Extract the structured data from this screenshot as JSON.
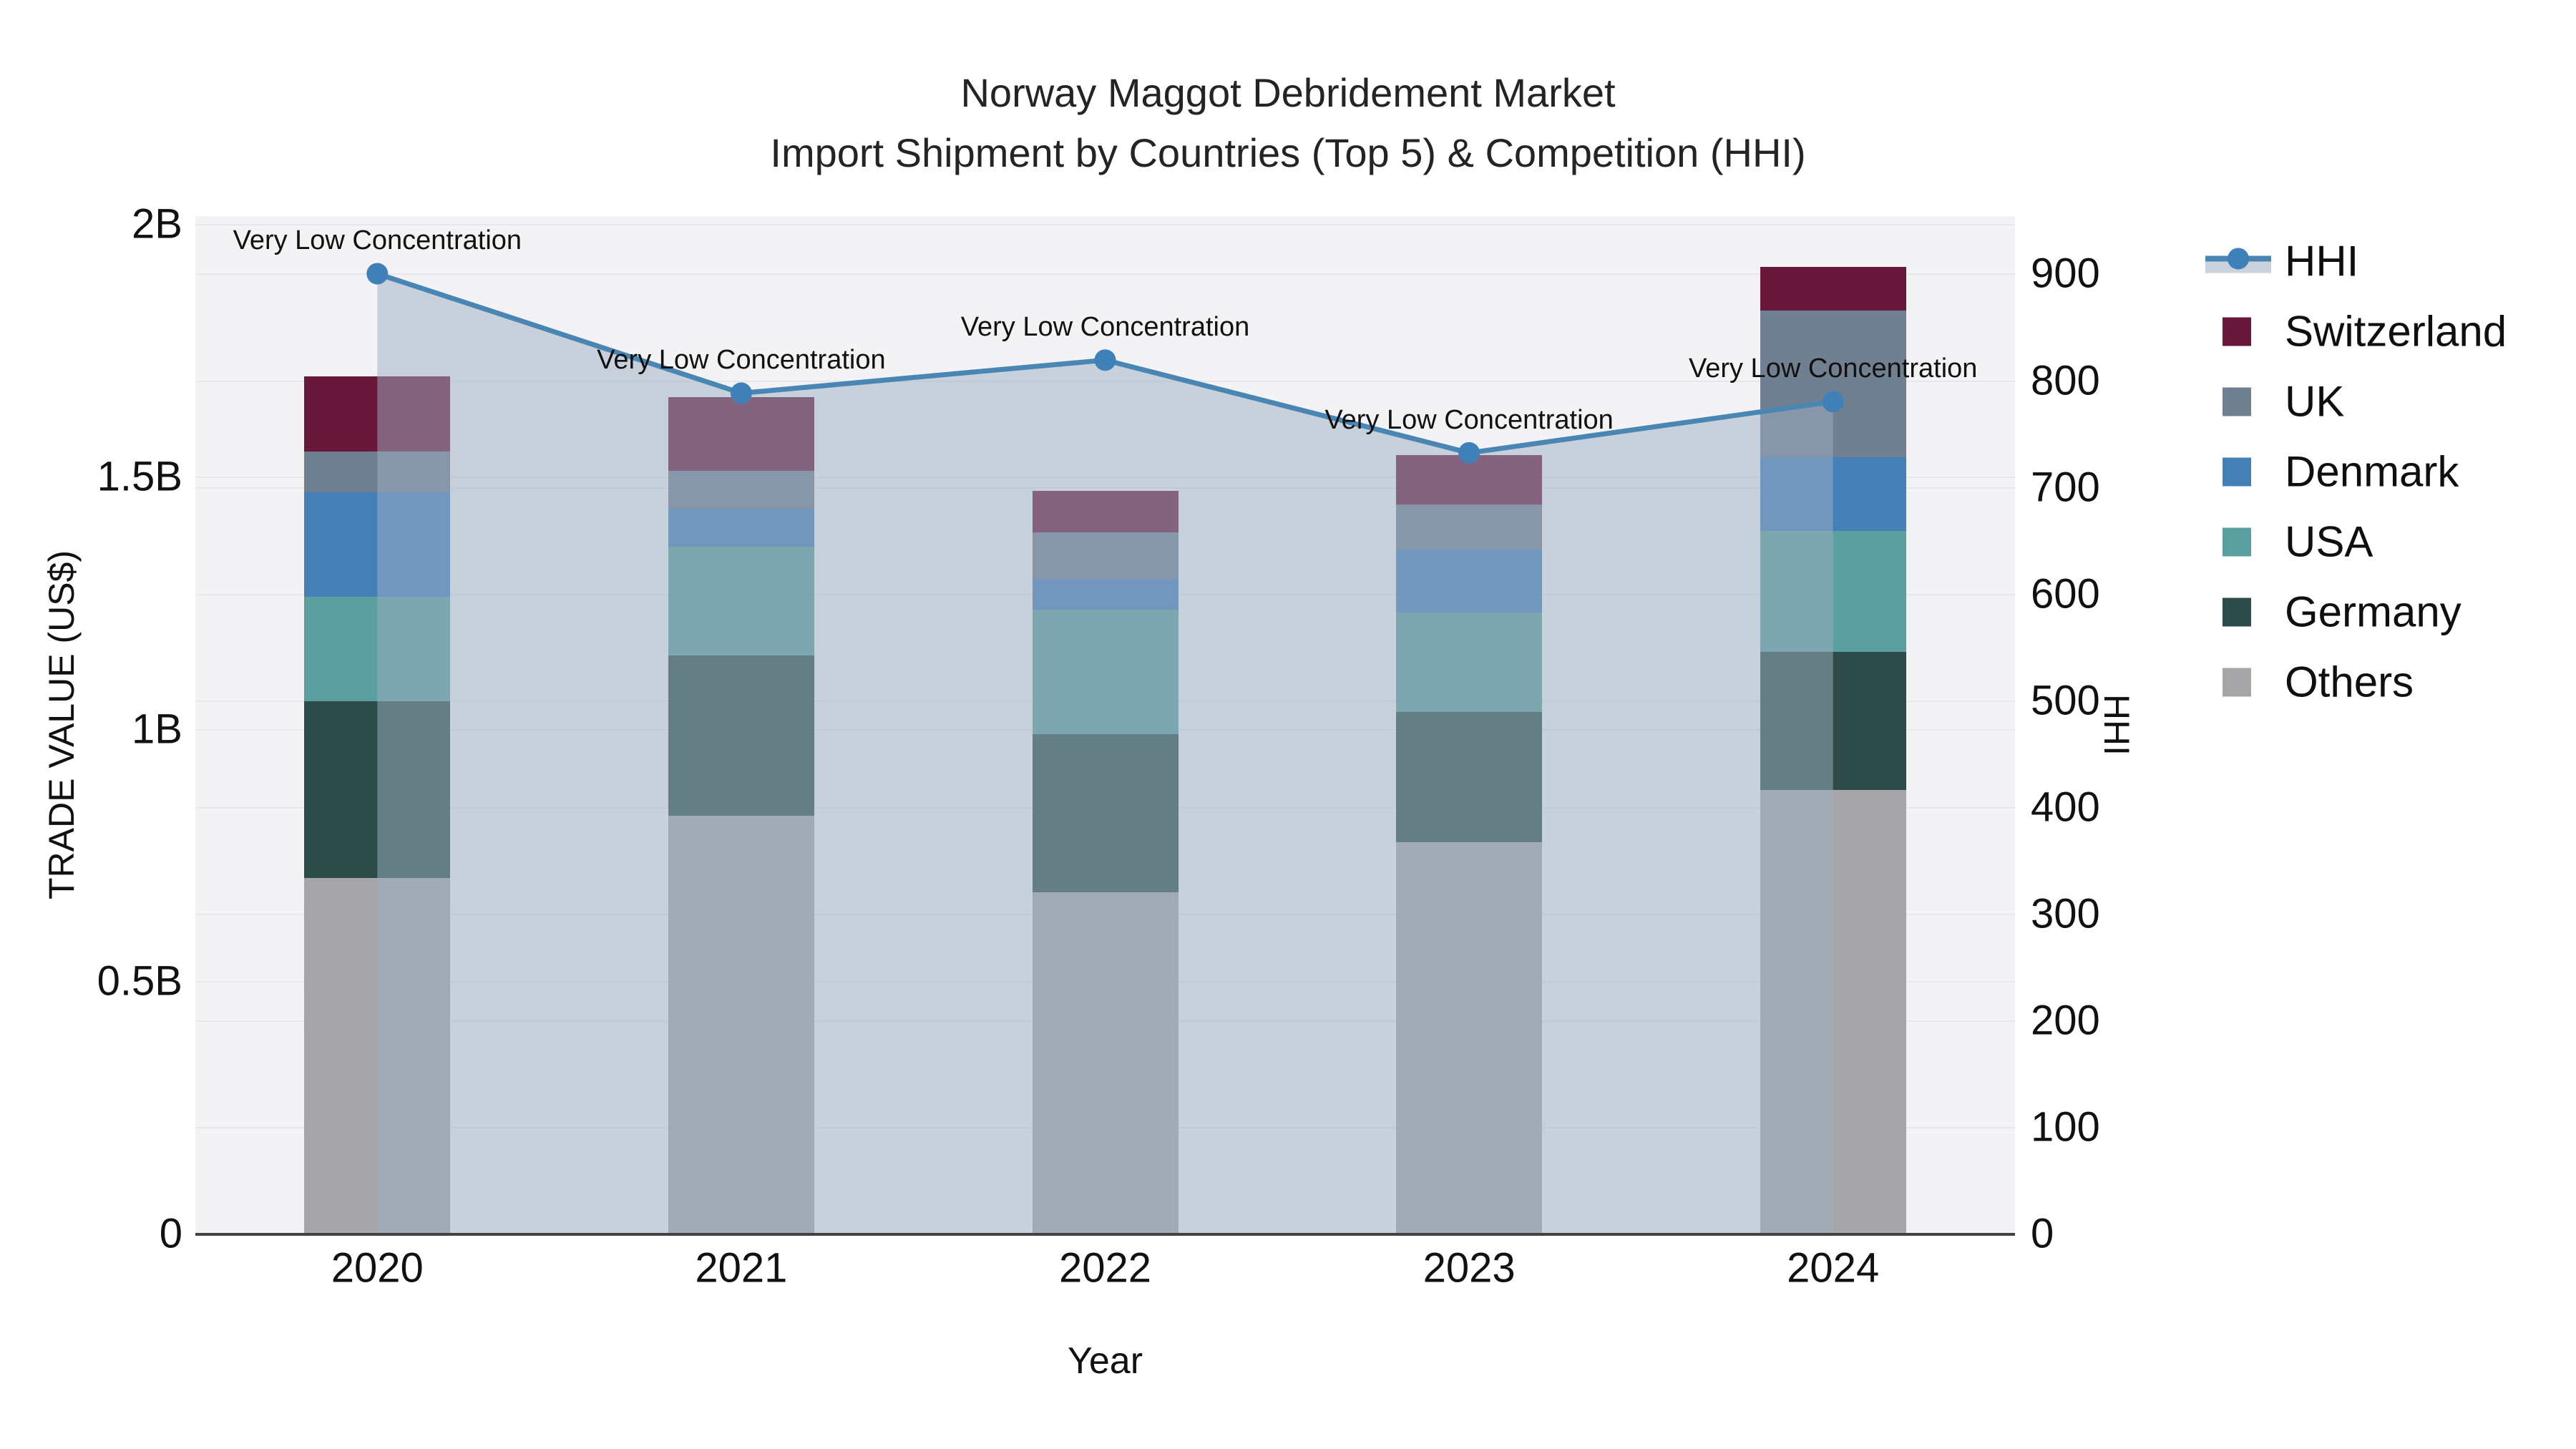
{
  "title": {
    "line1": "Norway Maggot Debridement Market",
    "line2": "Import Shipment by Countries (Top 5) & Competition (HHI)"
  },
  "axes": {
    "x": {
      "title": "Year",
      "categories": [
        "2020",
        "2021",
        "2022",
        "2023",
        "2024"
      ]
    },
    "left": {
      "title": "TRADE VALUE (US$)",
      "ticks": [
        {
          "label": "0",
          "value": 0
        },
        {
          "label": "0.5B",
          "value": 0.5
        },
        {
          "label": "1B",
          "value": 1
        },
        {
          "label": "1.5B",
          "value": 1.5
        },
        {
          "label": "2B",
          "value": 2
        }
      ],
      "max": 2.016
    },
    "right": {
      "title": "HHI",
      "ticks": [
        {
          "label": "0",
          "value": 0
        },
        {
          "label": "100",
          "value": 100
        },
        {
          "label": "200",
          "value": 200
        },
        {
          "label": "300",
          "value": 300
        },
        {
          "label": "400",
          "value": 400
        },
        {
          "label": "500",
          "value": 500
        },
        {
          "label": "600",
          "value": 600
        },
        {
          "label": "700",
          "value": 700
        },
        {
          "label": "800",
          "value": 800
        },
        {
          "label": "900",
          "value": 900
        }
      ],
      "max": 954
    }
  },
  "legend": {
    "items": [
      {
        "label": "HHI",
        "kind": "line",
        "color": "#4a86b4"
      },
      {
        "label": "Switzerland",
        "kind": "bar",
        "color": "#68183B"
      },
      {
        "label": "UK",
        "kind": "bar",
        "color": "#708090"
      },
      {
        "label": "Denmark",
        "kind": "bar",
        "color": "#4480B6"
      },
      {
        "label": "USA",
        "kind": "bar",
        "color": "#5C9FA1"
      },
      {
        "label": "Germany",
        "kind": "bar",
        "color": "#2D4C49"
      },
      {
        "label": "Others",
        "kind": "bar",
        "color": "#A6A6A8"
      }
    ]
  },
  "colors": {
    "plot_bg": "#f3f3f5",
    "grid": "#e7e7ea",
    "axis_line": "#424242",
    "hhi_line": "#4a86b4",
    "hhi_marker": "#4080b8",
    "hhi_fill": "rgba(158,174,193,0.5)",
    "legend_band": "#c9d2dd"
  },
  "chart_data": {
    "type": "bar",
    "subtype": "stacked-bars-with-line",
    "title": "Norway Maggot Debridement Market — Import Shipment by Countries (Top 5) & Competition (HHI)",
    "xlabel": "Year",
    "ylabel_left": "TRADE VALUE (US$)",
    "ylabel_right": "HHI",
    "ylim_left_B": [
      0,
      2.016
    ],
    "ylim_right": [
      0,
      954
    ],
    "grid": "on",
    "legend_position": "right",
    "categories": [
      "2020",
      "2021",
      "2022",
      "2023",
      "2024"
    ],
    "stack_order_bottom_to_top": [
      "Others",
      "Germany",
      "USA",
      "Denmark",
      "UK",
      "Switzerland"
    ],
    "series": [
      {
        "name": "Others",
        "type": "bar",
        "axis": "left",
        "color": "#A6A6A8",
        "values_B": [
          0.704,
          0.828,
          0.676,
          0.775,
          0.879
        ]
      },
      {
        "name": "Germany",
        "type": "bar",
        "axis": "left",
        "color": "#2D4C49",
        "values_B": [
          0.351,
          0.317,
          0.313,
          0.258,
          0.273
        ]
      },
      {
        "name": "USA",
        "type": "bar",
        "axis": "left",
        "color": "#5C9FA1",
        "values_B": [
          0.207,
          0.216,
          0.247,
          0.197,
          0.24
        ]
      },
      {
        "name": "Denmark",
        "type": "bar",
        "axis": "left",
        "color": "#4480B6",
        "values_B": [
          0.207,
          0.075,
          0.061,
          0.125,
          0.146
        ]
      },
      {
        "name": "UK",
        "type": "bar",
        "axis": "left",
        "color": "#708090",
        "values_B": [
          0.08,
          0.075,
          0.093,
          0.089,
          0.291
        ]
      },
      {
        "name": "Switzerland",
        "type": "bar",
        "axis": "left",
        "color": "#68183B",
        "values_B": [
          0.149,
          0.147,
          0.081,
          0.098,
          0.087
        ]
      },
      {
        "name": "HHI",
        "type": "line",
        "axis": "right",
        "color": "#4a86b4",
        "fill": "tozeroy",
        "values": [
          900,
          788,
          819,
          732,
          780
        ]
      }
    ],
    "bar_totals_B": [
      1.698,
      1.658,
      1.471,
      1.542,
      1.916
    ],
    "annotations": [
      {
        "x": "2020",
        "text": "Very Low Concentration"
      },
      {
        "x": "2021",
        "text": "Very Low Concentration"
      },
      {
        "x": "2022",
        "text": "Very Low Concentration"
      },
      {
        "x": "2023",
        "text": "Very Low Concentration"
      },
      {
        "x": "2024",
        "text": "Very Low Concentration"
      }
    ]
  }
}
